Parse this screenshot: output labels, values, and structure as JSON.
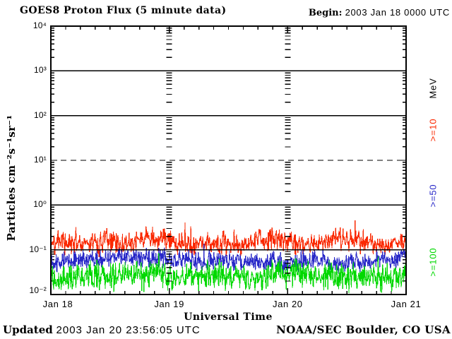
{
  "header": {
    "title": "GOES8 Proton Flux (5 minute data)",
    "begin_label": "Begin:",
    "begin_value": "2003 Jan 18 0000 UTC"
  },
  "footer": {
    "updated_label": "Updated",
    "updated_value": "2003 Jan 20 23:56:05 UTC",
    "credit": "NOAA/SEC Boulder, CO USA"
  },
  "colors": {
    "background": "#ffffff",
    "axis": "#000000",
    "p10_red": "#fa2800",
    "p50_blue": "#2828c8",
    "p100_green": "#00d800"
  },
  "chart_data": {
    "type": "line",
    "title": "GOES8 Proton Flux (5 minute data)",
    "xlabel": "Universal Time",
    "ylabel": "Particles cm⁻²s⁻¹sr⁻¹",
    "x_tick_labels": [
      "Jan 18",
      "Jan 19",
      "Jan 20",
      "Jan 21"
    ],
    "y_tick_labels": [
      "10⁴",
      "10³",
      "10²",
      "10¹",
      "10⁰",
      "10⁻¹",
      "10⁻²"
    ],
    "y_axis_log10_range": [
      -2,
      4
    ],
    "x_days": 3,
    "samples_per_day": 288,
    "grid": {
      "solid_line_decades": [
        3,
        2,
        0,
        -1
      ],
      "dashed_line_decades": [
        1
      ],
      "interior_tick_columns_at_day": [
        1,
        2
      ],
      "x_minor_tick_hours": 3
    },
    "legend_units_label": "MeV",
    "legend_position": "right-rotated",
    "series": [
      {
        "label": ">=10",
        "energy": ">=10 MeV protons",
        "color": "#fa2800",
        "approx_flux_range": [
          0.06,
          0.55
        ],
        "typical_flux": 0.15,
        "gen": {
          "seed": 7,
          "log_mean": -0.8,
          "jitter": 0.3,
          "walk_step": 0.05,
          "walk_max": 0.1,
          "spike_prob": 0.02,
          "spike_amp": 0.38,
          "clamp": [
            -1.25,
            -0.15
          ]
        }
      },
      {
        "label": ">=50",
        "energy": ">=50 MeV protons",
        "color": "#2828c8",
        "approx_flux_range": [
          0.02,
          0.16
        ],
        "typical_flux": 0.055,
        "gen": {
          "seed": 13,
          "log_mean": -1.24,
          "jitter": 0.26,
          "walk_step": 0.04,
          "walk_max": 0.09,
          "spike_prob": 0.012,
          "spike_amp": 0.24,
          "clamp": [
            -1.72,
            -0.8
          ]
        }
      },
      {
        "label": ">=100",
        "energy": ">=100 MeV protons",
        "color": "#00d800",
        "approx_flux_range": [
          0.01,
          0.09
        ],
        "typical_flux": 0.022,
        "gen": {
          "seed": 29,
          "log_mean": -1.62,
          "jitter": 0.38,
          "walk_step": 0.04,
          "walk_max": 0.1,
          "spike_prob": 0.012,
          "spike_amp": 0.28,
          "clamp": [
            -2.0,
            -1.0
          ]
        }
      }
    ]
  }
}
